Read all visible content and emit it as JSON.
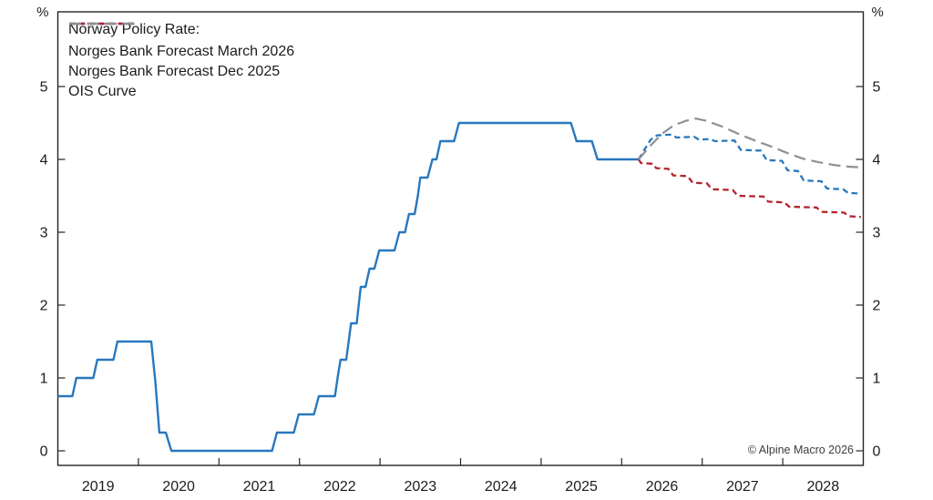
{
  "chart_data": {
    "type": "line",
    "legend": {
      "title": "Norway Policy Rate:",
      "items": [
        {
          "label": "Norges Bank Forecast March 2026",
          "color": "#2878BE",
          "dash": "short"
        },
        {
          "label": "Norges Bank Forecast Dec 2025",
          "color": "#B5242C",
          "dash": "short"
        },
        {
          "label": "OIS Curve",
          "color": "#8E9093",
          "dash": "long"
        }
      ]
    },
    "y_axis": {
      "unit": "%",
      "min": -0.2,
      "max": 6.025,
      "ticks": [
        0,
        1,
        2,
        3,
        4,
        5
      ]
    },
    "x_axis": {
      "min": 2019,
      "max": 2029,
      "tick_years": [
        2020,
        2021,
        2022,
        2023,
        2024,
        2025,
        2026,
        2027,
        2028
      ],
      "year_labels": [
        "2019",
        "2020",
        "2021",
        "2022",
        "2023",
        "2024",
        "2025",
        "2026",
        "2027",
        "2028"
      ]
    },
    "series": [
      {
        "name": "policy-rate-actual",
        "color": "#2878BE",
        "style": "solid",
        "width": 2.4,
        "points": [
          [
            2019.0,
            0.75
          ],
          [
            2019.18,
            0.75
          ],
          [
            2019.23,
            1.0
          ],
          [
            2019.44,
            1.0
          ],
          [
            2019.49,
            1.25
          ],
          [
            2019.69,
            1.25
          ],
          [
            2019.74,
            1.5
          ],
          [
            2020.16,
            1.5
          ],
          [
            2020.21,
            0.95
          ],
          [
            2020.26,
            0.25
          ],
          [
            2020.34,
            0.25
          ],
          [
            2020.41,
            0.0
          ],
          [
            2021.66,
            0.0
          ],
          [
            2021.72,
            0.25
          ],
          [
            2021.93,
            0.25
          ],
          [
            2021.99,
            0.5
          ],
          [
            2022.18,
            0.5
          ],
          [
            2022.24,
            0.75
          ],
          [
            2022.44,
            0.75
          ],
          [
            2022.48,
            1.05
          ],
          [
            2022.51,
            1.25
          ],
          [
            2022.58,
            1.25
          ],
          [
            2022.64,
            1.75
          ],
          [
            2022.71,
            1.75
          ],
          [
            2022.76,
            2.25
          ],
          [
            2022.82,
            2.25
          ],
          [
            2022.87,
            2.5
          ],
          [
            2022.93,
            2.5
          ],
          [
            2022.99,
            2.75
          ],
          [
            2023.18,
            2.75
          ],
          [
            2023.24,
            3.0
          ],
          [
            2023.31,
            3.0
          ],
          [
            2023.36,
            3.25
          ],
          [
            2023.43,
            3.25
          ],
          [
            2023.47,
            3.5
          ],
          [
            2023.5,
            3.75
          ],
          [
            2023.59,
            3.75
          ],
          [
            2023.65,
            4.0
          ],
          [
            2023.7,
            4.0
          ],
          [
            2023.75,
            4.25
          ],
          [
            2023.92,
            4.25
          ],
          [
            2023.98,
            4.5
          ],
          [
            2025.37,
            4.5
          ],
          [
            2025.44,
            4.25
          ],
          [
            2025.63,
            4.25
          ],
          [
            2025.7,
            4.0
          ],
          [
            2026.21,
            4.0
          ]
        ]
      },
      {
        "name": "norges-bank-forecast-march-2026",
        "color": "#2878BE",
        "style": "dash",
        "width": 2.3,
        "points": [
          [
            2026.21,
            4.0
          ],
          [
            2026.28,
            4.13
          ],
          [
            2026.36,
            4.27
          ],
          [
            2026.44,
            4.33
          ],
          [
            2026.62,
            4.34
          ],
          [
            2026.68,
            4.3
          ],
          [
            2026.9,
            4.31
          ],
          [
            2026.96,
            4.27
          ],
          [
            2027.1,
            4.28
          ],
          [
            2027.16,
            4.25
          ],
          [
            2027.4,
            4.26
          ],
          [
            2027.48,
            4.13
          ],
          [
            2027.73,
            4.12
          ],
          [
            2027.8,
            3.99
          ],
          [
            2027.99,
            3.98
          ],
          [
            2028.06,
            3.85
          ],
          [
            2028.19,
            3.84
          ],
          [
            2028.26,
            3.71
          ],
          [
            2028.48,
            3.7
          ],
          [
            2028.55,
            3.6
          ],
          [
            2028.75,
            3.59
          ],
          [
            2028.81,
            3.54
          ],
          [
            2028.97,
            3.53
          ]
        ]
      },
      {
        "name": "norges-bank-forecast-dec-2025",
        "color": "#B5242C",
        "style": "dash",
        "width": 2.3,
        "points": [
          [
            2026.21,
            4.0
          ],
          [
            2026.24,
            3.95
          ],
          [
            2026.38,
            3.94
          ],
          [
            2026.43,
            3.88
          ],
          [
            2026.58,
            3.87
          ],
          [
            2026.64,
            3.78
          ],
          [
            2026.82,
            3.77
          ],
          [
            2026.88,
            3.68
          ],
          [
            2027.06,
            3.67
          ],
          [
            2027.12,
            3.59
          ],
          [
            2027.38,
            3.58
          ],
          [
            2027.44,
            3.5
          ],
          [
            2027.76,
            3.49
          ],
          [
            2027.82,
            3.42
          ],
          [
            2028.02,
            3.41
          ],
          [
            2028.08,
            3.35
          ],
          [
            2028.42,
            3.34
          ],
          [
            2028.48,
            3.28
          ],
          [
            2028.76,
            3.27
          ],
          [
            2028.82,
            3.22
          ],
          [
            2028.97,
            3.21
          ]
        ]
      },
      {
        "name": "ois-curve",
        "color": "#8E9093",
        "style": "longdash",
        "width": 2.2,
        "points": [
          [
            2026.21,
            4.0
          ],
          [
            2026.35,
            4.18
          ],
          [
            2026.5,
            4.35
          ],
          [
            2026.65,
            4.47
          ],
          [
            2026.8,
            4.53
          ],
          [
            2026.92,
            4.56
          ],
          [
            2027.05,
            4.53
          ],
          [
            2027.25,
            4.45
          ],
          [
            2027.45,
            4.35
          ],
          [
            2027.65,
            4.26
          ],
          [
            2027.85,
            4.18
          ],
          [
            2028.05,
            4.09
          ],
          [
            2028.25,
            4.01
          ],
          [
            2028.45,
            3.96
          ],
          [
            2028.65,
            3.92
          ],
          [
            2028.82,
            3.9
          ],
          [
            2028.97,
            3.89
          ]
        ]
      }
    ],
    "footer": "© Alpine Macro 2026"
  }
}
